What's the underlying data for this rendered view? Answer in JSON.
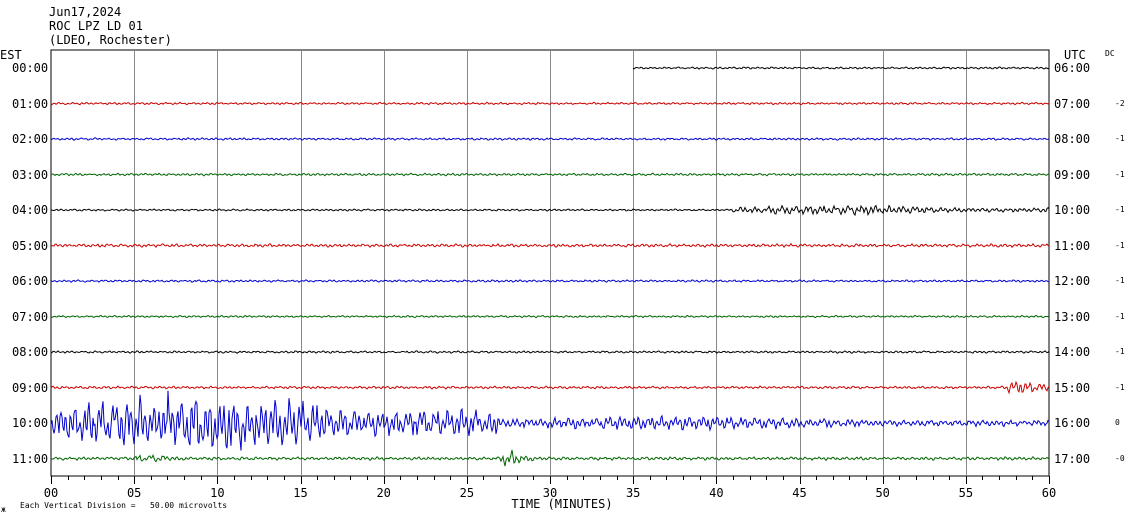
{
  "header": {
    "date": "Jun17,2024",
    "station": "ROC LPZ LD 01",
    "network": "(LDEO, Rochester)"
  },
  "left_axis_label": "EST",
  "right_axis_label": "UTC",
  "dc_label": "DC",
  "footer": {
    "scale_note": "Each Vertical Division =   50.00 microvolts",
    "corner_mark": "ж"
  },
  "chart_data": {
    "type": "line",
    "title": "",
    "xlabel": "TIME (MINUTES)",
    "x_ticks": [
      "00",
      "05",
      "10",
      "15",
      "20",
      "25",
      "30",
      "35",
      "40",
      "45",
      "50",
      "55",
      "60"
    ],
    "xlim": [
      0,
      60
    ],
    "grid": true,
    "trace_colors": [
      "#000000",
      "#cc0000",
      "#0000cc",
      "#006600"
    ],
    "rows": [
      {
        "est": "00:00",
        "utc": "06:00",
        "dc": "",
        "start_min": 35,
        "amp": 1.0,
        "events": []
      },
      {
        "est": "01:00",
        "utc": "07:00",
        "dc": "-2",
        "start_min": 0,
        "amp": 1.1,
        "events": []
      },
      {
        "est": "02:00",
        "utc": "08:00",
        "dc": "-1",
        "start_min": 0,
        "amp": 1.1,
        "events": []
      },
      {
        "est": "03:00",
        "utc": "09:00",
        "dc": "-1",
        "start_min": 0,
        "amp": 1.2,
        "events": []
      },
      {
        "est": "04:00",
        "utc": "10:00",
        "dc": "-1",
        "start_min": 0,
        "amp": 1.0,
        "events": [
          [
            41,
            60,
            5
          ]
        ]
      },
      {
        "est": "05:00",
        "utc": "11:00",
        "dc": "-1",
        "start_min": 0,
        "amp": 1.6,
        "events": []
      },
      {
        "est": "06:00",
        "utc": "12:00",
        "dc": "-1",
        "start_min": 0,
        "amp": 1.1,
        "events": []
      },
      {
        "est": "07:00",
        "utc": "13:00",
        "dc": "-1",
        "start_min": 0,
        "amp": 1.0,
        "events": []
      },
      {
        "est": "08:00",
        "utc": "14:00",
        "dc": "-1",
        "start_min": 0,
        "amp": 1.1,
        "events": []
      },
      {
        "est": "09:00",
        "utc": "15:00",
        "dc": "-1",
        "start_min": 0,
        "amp": 1.3,
        "events": [
          [
            57.5,
            60,
            8
          ]
        ]
      },
      {
        "est": "10:00",
        "utc": "16:00",
        "dc": "0",
        "start_min": 0,
        "amp": 2.0,
        "events": [
          [
            0,
            27,
            30
          ],
          [
            27,
            60,
            7
          ]
        ]
      },
      {
        "est": "11:00",
        "utc": "17:00",
        "dc": "-0",
        "start_min": 0,
        "amp": 1.6,
        "events": [
          [
            5,
            8,
            5
          ],
          [
            27,
            29,
            8
          ]
        ]
      }
    ]
  }
}
